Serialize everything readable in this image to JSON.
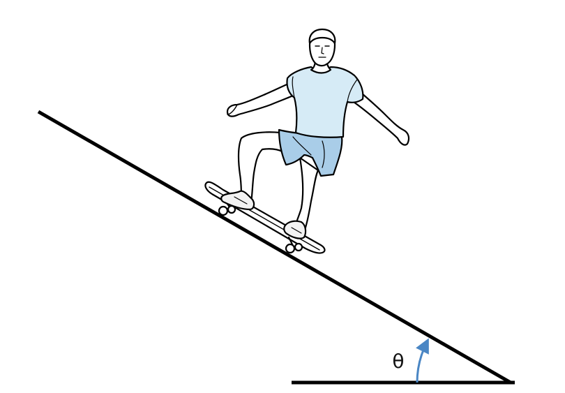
{
  "figure": {
    "angle_symbol": "θ"
  },
  "colors": {
    "ink": "#000000",
    "shirt": "#d6ebf6",
    "shorts": "#a9cde8",
    "skin": "#ffffff",
    "shoe": "#f2f2f2",
    "angle_arrow": "#4a86c4"
  },
  "icons": {
    "angle_arrow": "curved-arrow-icon"
  }
}
